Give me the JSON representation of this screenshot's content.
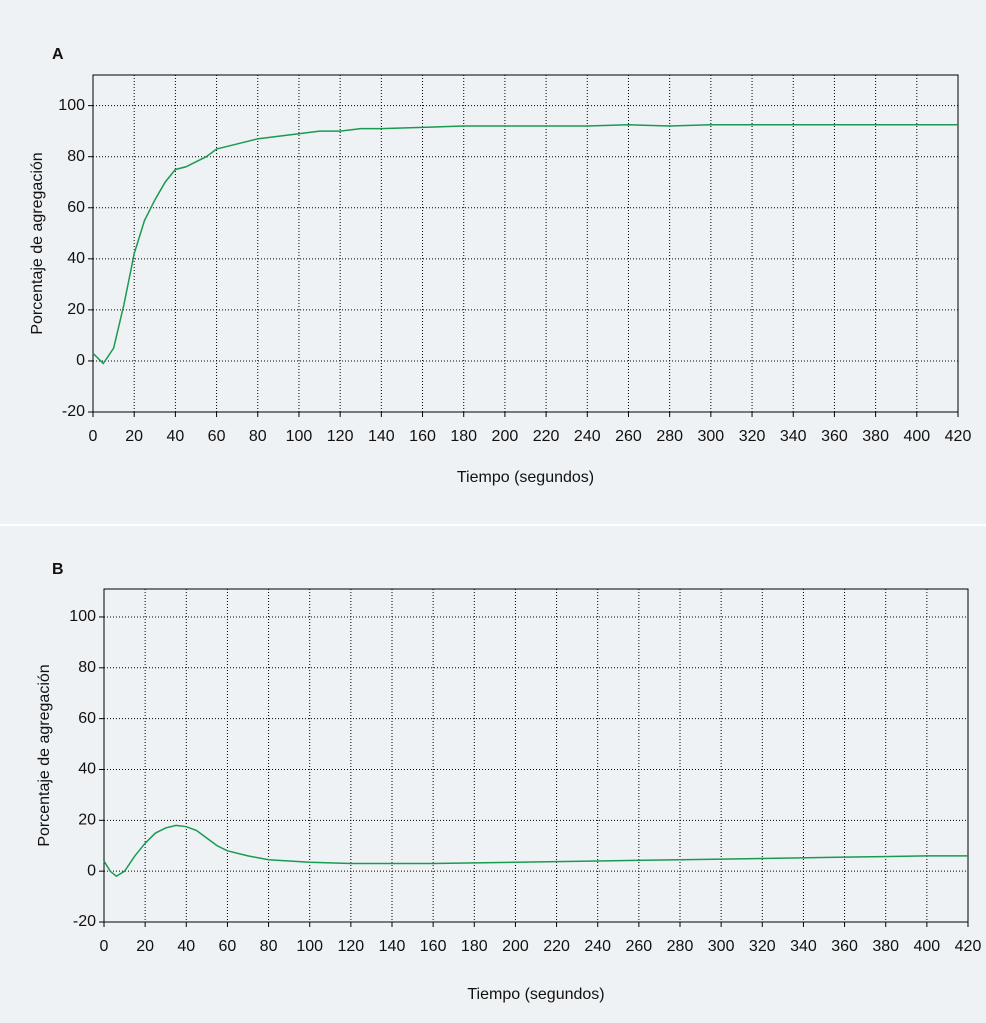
{
  "chart_data": [
    {
      "type": "line",
      "title": "A",
      "xlabel": "Tiempo (segundos)",
      "ylabel": "Porcentaje de agregación",
      "xlim": [
        0,
        420
      ],
      "ylim": [
        -20,
        112
      ],
      "xticks": [
        0,
        20,
        40,
        60,
        80,
        100,
        120,
        140,
        160,
        180,
        200,
        220,
        240,
        260,
        280,
        300,
        320,
        340,
        360,
        380,
        400,
        420
      ],
      "yticks": [
        -20,
        0,
        20,
        40,
        60,
        80,
        100
      ],
      "grid": true,
      "series": [
        {
          "color": "#1a9a50",
          "x": [
            0,
            5,
            10,
            15,
            20,
            25,
            30,
            35,
            40,
            45,
            50,
            55,
            60,
            70,
            80,
            90,
            100,
            110,
            120,
            130,
            140,
            160,
            180,
            200,
            220,
            240,
            260,
            280,
            300,
            320,
            340,
            360,
            380,
            400,
            420
          ],
          "values": [
            3,
            -1,
            5,
            22,
            42,
            55,
            63,
            70,
            75,
            76,
            78,
            80,
            83,
            85,
            87,
            88,
            89,
            90,
            90,
            91,
            91,
            91.5,
            92,
            92,
            92,
            92,
            92.5,
            92,
            92.5,
            92.5,
            92.5,
            92.5,
            92.5,
            92.5,
            92.5
          ]
        }
      ]
    },
    {
      "type": "line",
      "title": "B",
      "xlabel": "Tiempo (segundos)",
      "ylabel": "Porcentaje de agregación",
      "xlim": [
        0,
        420
      ],
      "ylim": [
        -20,
        111
      ],
      "xticks": [
        0,
        20,
        40,
        60,
        80,
        100,
        120,
        140,
        160,
        180,
        200,
        220,
        240,
        260,
        280,
        300,
        320,
        340,
        360,
        380,
        400,
        420
      ],
      "yticks": [
        -20,
        0,
        20,
        40,
        60,
        80,
        100
      ],
      "grid": true,
      "series": [
        {
          "color": "#1a9a50",
          "x": [
            0,
            3,
            6,
            10,
            15,
            20,
            25,
            30,
            35,
            40,
            45,
            50,
            55,
            60,
            70,
            80,
            90,
            100,
            120,
            140,
            160,
            200,
            240,
            280,
            320,
            360,
            400,
            420
          ],
          "values": [
            4,
            0,
            -2,
            0,
            6,
            11,
            15,
            17,
            18,
            17.5,
            16,
            13,
            10,
            8,
            6,
            4.5,
            4,
            3.5,
            3,
            3,
            3,
            3.5,
            4,
            4.5,
            5,
            5.5,
            6,
            6
          ]
        }
      ]
    }
  ]
}
